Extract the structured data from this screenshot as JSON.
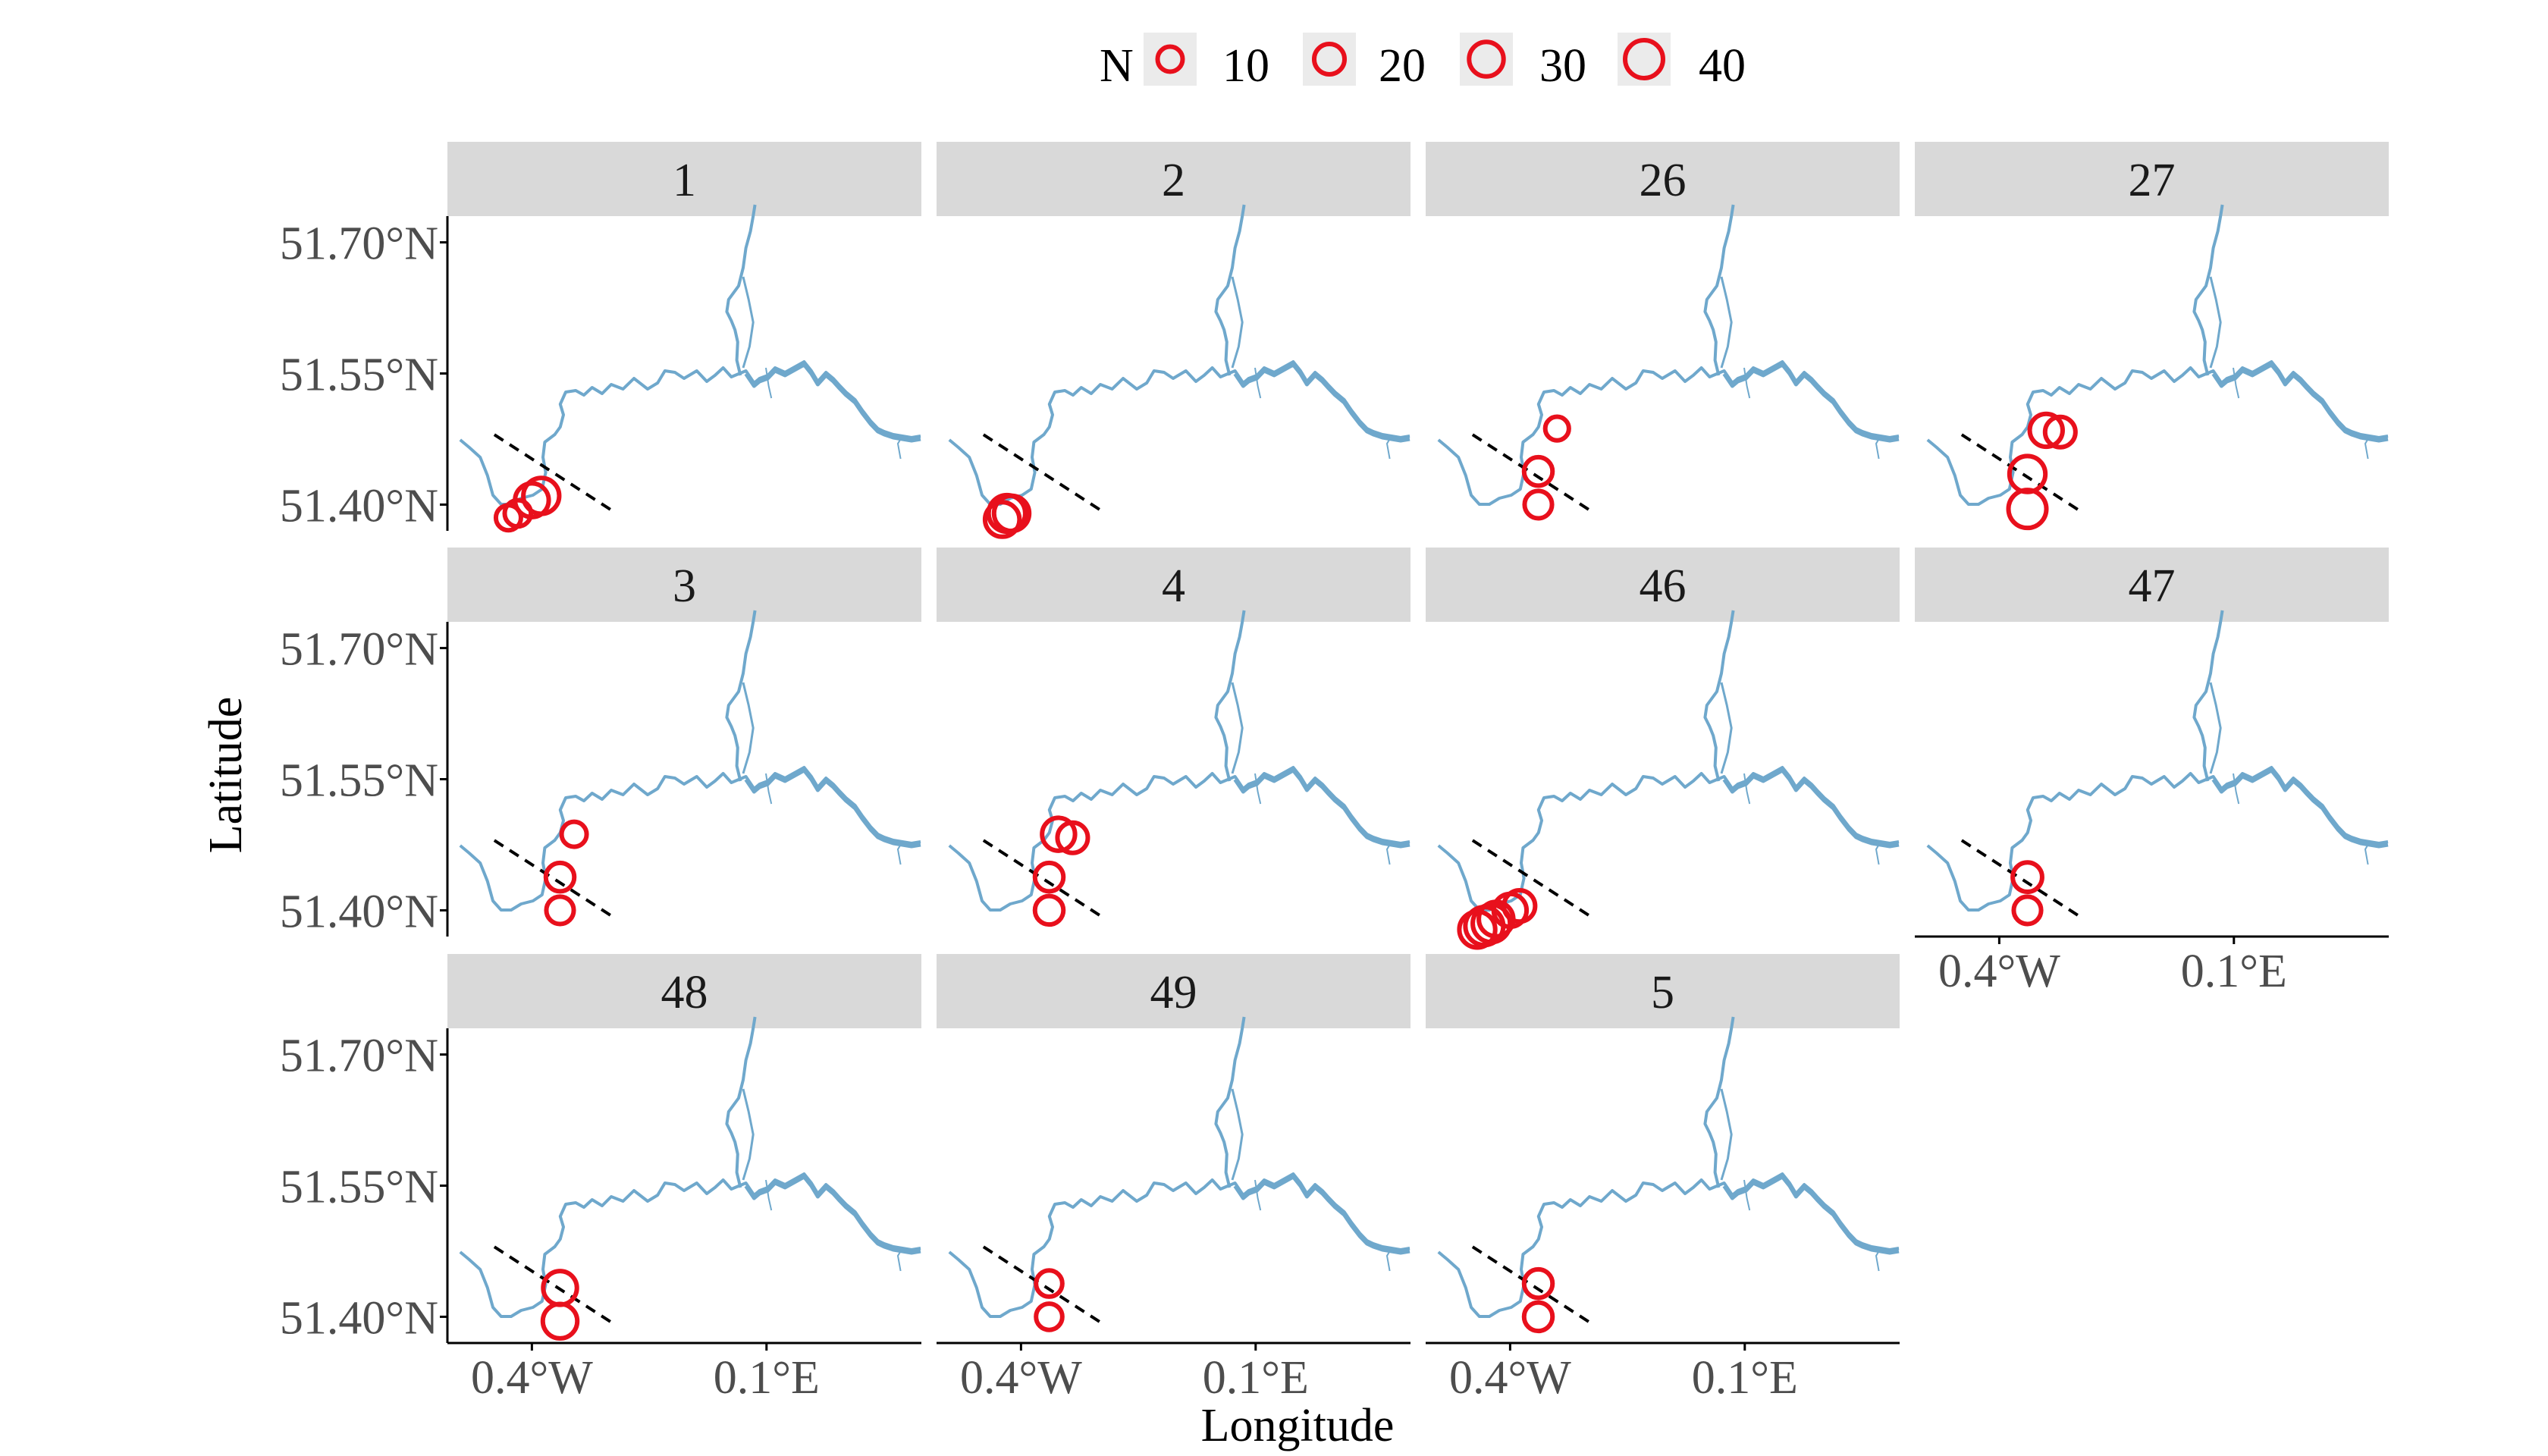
{
  "chart_data": {
    "type": "scatter",
    "subtype": "faceted bubble map",
    "xlabel": "Longitude",
    "ylabel": "Latitude",
    "y_ticks": [
      {
        "value": 51.7,
        "label": "51.70°N"
      },
      {
        "value": 51.55,
        "label": "51.55°N"
      },
      {
        "value": 51.4,
        "label": "51.40°N"
      }
    ],
    "x_ticks": [
      {
        "value": -0.4,
        "label": "0.4°W"
      },
      {
        "value": 0.1,
        "label": "0.1°E"
      }
    ],
    "xlim": [
      -0.58,
      0.43
    ],
    "ylim": [
      51.37,
      51.73
    ],
    "legend": {
      "title": "N",
      "position": "top",
      "entries": [
        {
          "value": 10,
          "label": "10"
        },
        {
          "value": 20,
          "label": "20"
        },
        {
          "value": 30,
          "label": "30"
        },
        {
          "value": 40,
          "label": "40"
        }
      ]
    },
    "colors": {
      "points": "#e8101c",
      "river": "#6fa8cc",
      "strip": "#d9d9d9",
      "dashed_line": "#000000"
    },
    "dashed_line": {
      "from": [
        -0.48,
        51.48
      ],
      "to": [
        -0.22,
        51.39
      ]
    },
    "facets": [
      {
        "label": "1",
        "points": [
          {
            "lon": -0.45,
            "lat": 51.385,
            "n": 10
          },
          {
            "lon": -0.43,
            "lat": 51.39,
            "n": 12
          },
          {
            "lon": -0.4,
            "lat": 51.405,
            "n": 28
          },
          {
            "lon": -0.38,
            "lat": 51.41,
            "n": 34
          }
        ]
      },
      {
        "label": "2",
        "points": [
          {
            "lon": -0.44,
            "lat": 51.383,
            "n": 30
          },
          {
            "lon": -0.43,
            "lat": 51.39,
            "n": 36
          },
          {
            "lon": -0.42,
            "lat": 51.39,
            "n": 32
          }
        ]
      },
      {
        "label": "26",
        "points": [
          {
            "lon": -0.34,
            "lat": 51.4,
            "n": 14
          },
          {
            "lon": -0.34,
            "lat": 51.438,
            "n": 16
          },
          {
            "lon": -0.3,
            "lat": 51.487,
            "n": 8
          }
        ]
      },
      {
        "label": "27",
        "points": [
          {
            "lon": -0.34,
            "lat": 51.395,
            "n": 40
          },
          {
            "lon": -0.34,
            "lat": 51.435,
            "n": 34
          },
          {
            "lon": -0.3,
            "lat": 51.485,
            "n": 26
          },
          {
            "lon": -0.27,
            "lat": 51.483,
            "n": 20
          }
        ]
      },
      {
        "label": "3",
        "points": [
          {
            "lon": -0.34,
            "lat": 51.4,
            "n": 14
          },
          {
            "lon": -0.34,
            "lat": 51.438,
            "n": 16
          },
          {
            "lon": -0.31,
            "lat": 51.487,
            "n": 10
          }
        ]
      },
      {
        "label": "4",
        "points": [
          {
            "lon": -0.34,
            "lat": 51.4,
            "n": 16
          },
          {
            "lon": -0.34,
            "lat": 51.438,
            "n": 16
          },
          {
            "lon": -0.32,
            "lat": 51.487,
            "n": 26
          },
          {
            "lon": -0.29,
            "lat": 51.483,
            "n": 20
          }
        ]
      },
      {
        "label": "46",
        "points": [
          {
            "lon": -0.47,
            "lat": 51.378,
            "n": 34
          },
          {
            "lon": -0.455,
            "lat": 51.382,
            "n": 40
          },
          {
            "lon": -0.44,
            "lat": 51.385,
            "n": 38
          },
          {
            "lon": -0.43,
            "lat": 51.39,
            "n": 30
          },
          {
            "lon": -0.4,
            "lat": 51.4,
            "n": 26
          },
          {
            "lon": -0.38,
            "lat": 51.405,
            "n": 22
          }
        ]
      },
      {
        "label": "47",
        "points": [
          {
            "lon": -0.34,
            "lat": 51.4,
            "n": 14
          },
          {
            "lon": -0.34,
            "lat": 51.438,
            "n": 18
          }
        ]
      },
      {
        "label": "48",
        "points": [
          {
            "lon": -0.34,
            "lat": 51.395,
            "n": 30
          },
          {
            "lon": -0.34,
            "lat": 51.433,
            "n": 28
          }
        ]
      },
      {
        "label": "49",
        "points": [
          {
            "lon": -0.34,
            "lat": 51.4,
            "n": 12
          },
          {
            "lon": -0.34,
            "lat": 51.438,
            "n": 12
          }
        ]
      },
      {
        "label": "5",
        "points": [
          {
            "lon": -0.34,
            "lat": 51.4,
            "n": 16
          },
          {
            "lon": -0.34,
            "lat": 51.438,
            "n": 16
          }
        ]
      }
    ]
  }
}
